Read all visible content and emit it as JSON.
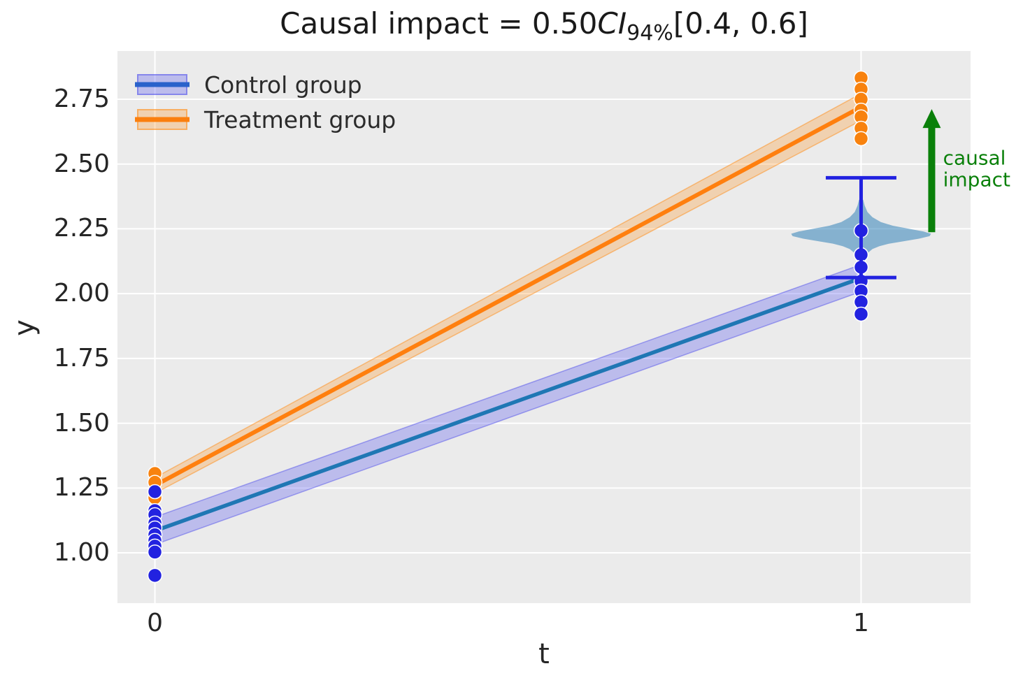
{
  "title": {
    "prefix": "Causal impact = 0.50",
    "ci": "CI",
    "ci_subscript": "94%",
    "interval": "[0.4, 0.6]"
  },
  "legend": {
    "position": "upper left",
    "items": [
      {
        "label": "Control group",
        "line_color": "#2a62cb",
        "band_fill": "rgba(78,78,238,0.30)",
        "band_edge": "rgba(69,69,235,0.45)"
      },
      {
        "label": "Treatment group",
        "line_color": "#fb7f0e",
        "band_fill": "rgba(255,145,25,0.28)",
        "band_edge": "rgba(255,140,20,0.50)"
      }
    ]
  },
  "style": {
    "figure_bg": "#ffffff",
    "axes_bg": "#ebebeb",
    "grid_color": "#ffffff",
    "text_color": "#262626",
    "title_color": "#1a1a1a"
  },
  "chart_data": {
    "type": "line",
    "title": "Causal impact = 0.50 CI94% [0.4, 0.6]",
    "xlabel": "t",
    "ylabel": "y",
    "grid": true,
    "legend_position": "upper left",
    "xlim": [
      -0.053,
      1.155
    ],
    "ylim": [
      0.806,
      2.936
    ],
    "xticks": {
      "values": [
        0,
        1
      ],
      "labels": [
        "0",
        "1"
      ]
    },
    "yticks": {
      "values": [
        1.0,
        1.25,
        1.5,
        1.75,
        2.0,
        2.25,
        2.5,
        2.75
      ],
      "labels": [
        "1.00",
        "1.25",
        "1.50",
        "1.75",
        "2.00",
        "2.25",
        "2.50",
        "2.75"
      ]
    },
    "lines": [
      {
        "name": "Control group",
        "color": "#1f77b4",
        "width": 5.5,
        "x": [
          0,
          1
        ],
        "y": [
          1.085,
          2.06
        ],
        "band_upper": [
          1.138,
          2.112
        ],
        "band_lower": [
          1.032,
          2.008
        ],
        "band_fill": "rgba(78,78,238,0.30)",
        "band_edge": "rgba(69,69,235,0.45)"
      },
      {
        "name": "Treatment group",
        "color": "#ff7f0e",
        "width": 6,
        "x": [
          0,
          1
        ],
        "y": [
          1.26,
          2.72
        ],
        "band_upper": [
          1.29,
          2.772
        ],
        "band_lower": [
          1.23,
          2.668
        ],
        "band_fill": "rgba(255,145,25,0.28)",
        "band_edge": "rgba(255,140,20,0.50)"
      }
    ],
    "scatter": [
      {
        "name": "Treatment observations",
        "color": "#f8820e",
        "points": [
          [
            0,
            1.306
          ],
          [
            0,
            1.272
          ],
          [
            0,
            1.213
          ],
          [
            1,
            2.832
          ],
          [
            1,
            2.789
          ],
          [
            1,
            2.75
          ],
          [
            1,
            2.708
          ],
          [
            1,
            2.682
          ],
          [
            1,
            2.638
          ],
          [
            1,
            2.598
          ]
        ]
      },
      {
        "name": "Control observations",
        "color": "#2222e0",
        "points": [
          [
            0,
            1.236
          ],
          [
            0,
            1.163
          ],
          [
            0,
            1.147
          ],
          [
            0,
            1.115
          ],
          [
            0,
            1.096
          ],
          [
            0,
            1.07
          ],
          [
            0,
            1.048
          ],
          [
            0,
            1.026
          ],
          [
            0,
            1.003
          ],
          [
            0,
            0.913
          ],
          [
            1,
            2.243
          ],
          [
            1,
            2.15
          ],
          [
            1,
            2.102
          ],
          [
            1,
            2.048
          ],
          [
            1,
            2.01
          ],
          [
            1,
            1.968
          ],
          [
            1,
            1.921
          ]
        ]
      }
    ],
    "violin": {
      "x": 1,
      "color": "rgba(31,119,180,0.5)",
      "center": 2.23,
      "range": [
        2.115,
        2.362
      ],
      "profile": [
        [
          2.362,
          0.003
        ],
        [
          2.34,
          0.005
        ],
        [
          2.315,
          0.009
        ],
        [
          2.295,
          0.016
        ],
        [
          2.276,
          0.028
        ],
        [
          2.262,
          0.045
        ],
        [
          2.25,
          0.068
        ],
        [
          2.24,
          0.088
        ],
        [
          2.231,
          0.099
        ],
        [
          2.222,
          0.097
        ],
        [
          2.212,
          0.082
        ],
        [
          2.202,
          0.06
        ],
        [
          2.193,
          0.04
        ],
        [
          2.183,
          0.026
        ],
        [
          2.172,
          0.016
        ],
        [
          2.158,
          0.01
        ],
        [
          2.14,
          0.006
        ],
        [
          2.118,
          0.003
        ]
      ]
    },
    "errorbar": {
      "x": 1,
      "y_lower": 2.062,
      "y_upper": 2.447,
      "cap_halfwidth": 0.05,
      "color": "#2222e0",
      "width": 5
    },
    "arrow": {
      "x": 1.1,
      "y_from": 2.237,
      "y_to": 2.712,
      "color": "#0a800a"
    },
    "annotation": {
      "text_lines": [
        "causal",
        "impact"
      ],
      "x": 1.116,
      "y_centers": [
        2.523,
        2.44
      ],
      "color": "#0a800a",
      "fontsize": 28
    }
  }
}
